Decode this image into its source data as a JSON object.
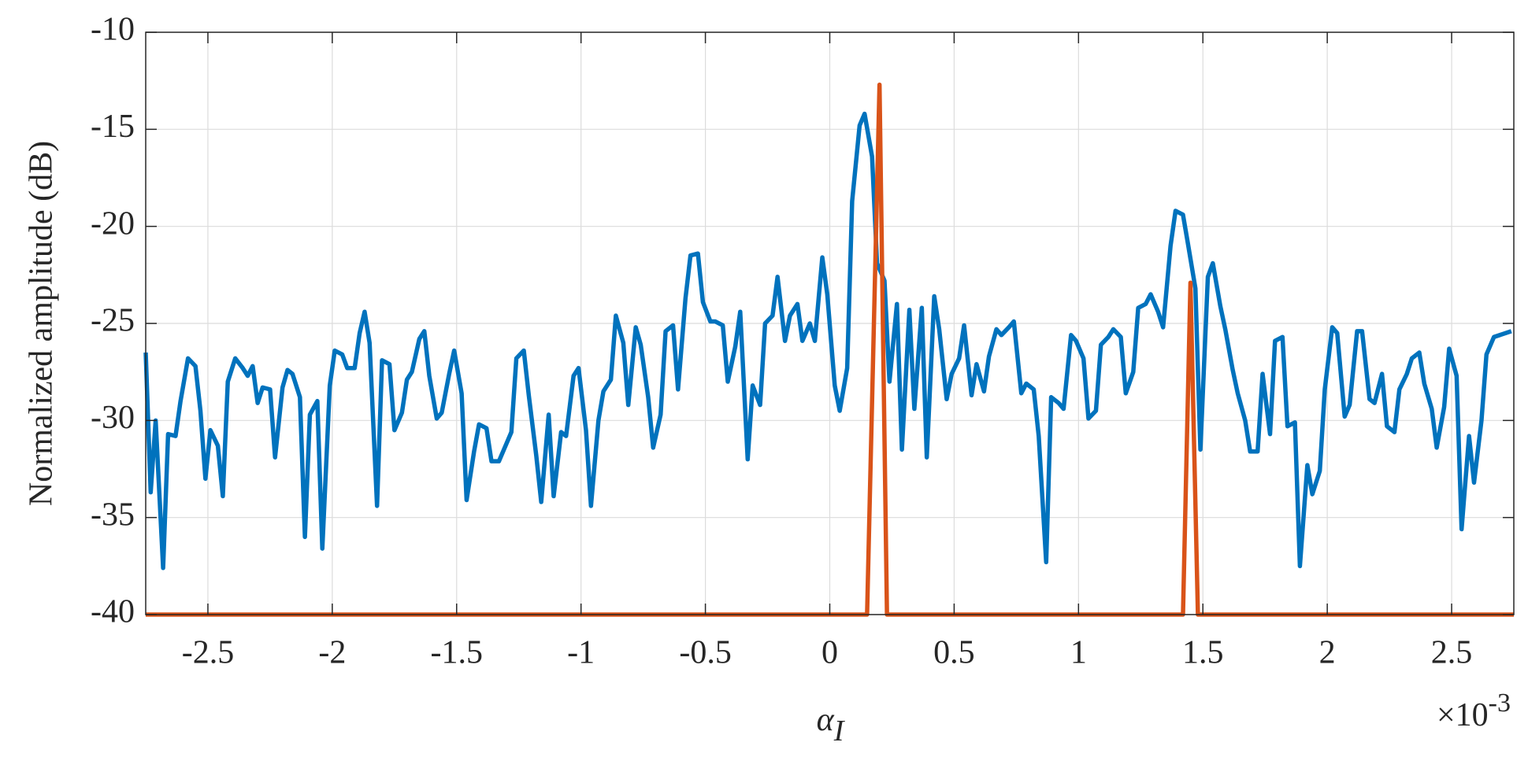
{
  "chart_data": {
    "type": "line",
    "ylabel": "Normalized amplitude (dB)",
    "xlabel": "α",
    "xlabel_subscript": "I",
    "x_scale_label": "×10",
    "x_scale_exponent": "-3",
    "xlim": [
      -2.75,
      2.75
    ],
    "ylim": [
      -40,
      -10
    ],
    "xticks": [
      -2.5,
      -2,
      -1.5,
      -1,
      -0.5,
      0,
      0.5,
      1,
      1.5,
      2,
      2.5
    ],
    "yticks": [
      -40,
      -35,
      -30,
      -25,
      -20,
      -15,
      -10
    ],
    "grid": true,
    "series": [
      {
        "color": "#0072BD",
        "x": [
          -2.75,
          -2.73,
          -2.71,
          -2.68,
          -2.66,
          -2.63,
          -2.61,
          -2.58,
          -2.55,
          -2.53,
          -2.51,
          -2.49,
          -2.46,
          -2.44,
          -2.42,
          -2.39,
          -2.36,
          -2.34,
          -2.32,
          -2.3,
          -2.28,
          -2.25,
          -2.23,
          -2.2,
          -2.18,
          -2.16,
          -2.13,
          -2.11,
          -2.09,
          -2.06,
          -2.04,
          -2.01,
          -1.99,
          -1.96,
          -1.94,
          -1.91,
          -1.89,
          -1.87,
          -1.85,
          -1.82,
          -1.8,
          -1.77,
          -1.75,
          -1.72,
          -1.7,
          -1.68,
          -1.65,
          -1.63,
          -1.61,
          -1.58,
          -1.56,
          -1.53,
          -1.51,
          -1.48,
          -1.46,
          -1.43,
          -1.41,
          -1.38,
          -1.36,
          -1.33,
          -1.31,
          -1.28,
          -1.26,
          -1.23,
          -1.21,
          -1.18,
          -1.16,
          -1.13,
          -1.11,
          -1.08,
          -1.06,
          -1.03,
          -1.01,
          -0.98,
          -0.96,
          -0.93,
          -0.91,
          -0.88,
          -0.86,
          -0.83,
          -0.81,
          -0.78,
          -0.76,
          -0.73,
          -0.71,
          -0.68,
          -0.66,
          -0.63,
          -0.61,
          -0.58,
          -0.56,
          -0.53,
          -0.51,
          -0.48,
          -0.46,
          -0.43,
          -0.41,
          -0.38,
          -0.36,
          -0.33,
          -0.31,
          -0.28,
          -0.26,
          -0.23,
          -0.21,
          -0.18,
          -0.16,
          -0.13,
          -0.11,
          -0.08,
          -0.06,
          -0.03,
          -0.01,
          0.02,
          0.04,
          0.07,
          0.09,
          0.12,
          0.14,
          0.17,
          0.19,
          0.22,
          0.24,
          0.27,
          0.29,
          0.32,
          0.34,
          0.37,
          0.39,
          0.42,
          0.44,
          0.47,
          0.49,
          0.52,
          0.54,
          0.57,
          0.59,
          0.62,
          0.64,
          0.67,
          0.69,
          0.72,
          0.74,
          0.77,
          0.79,
          0.82,
          0.84,
          0.87,
          0.89,
          0.92,
          0.94,
          0.97,
          0.99,
          1.02,
          1.04,
          1.07,
          1.09,
          1.12,
          1.14,
          1.17,
          1.19,
          1.22,
          1.24,
          1.27,
          1.29,
          1.32,
          1.34,
          1.37,
          1.39,
          1.42,
          1.44,
          1.47,
          1.49,
          1.52,
          1.54,
          1.57,
          1.59,
          1.62,
          1.64,
          1.67,
          1.69,
          1.72,
          1.74,
          1.77,
          1.79,
          1.82,
          1.84,
          1.87,
          1.89,
          1.92,
          1.94,
          1.97,
          1.99,
          2.02,
          2.04,
          2.07,
          2.09,
          2.12,
          2.14,
          2.17,
          2.19,
          2.22,
          2.24,
          2.27,
          2.29,
          2.32,
          2.34,
          2.37,
          2.39,
          2.42,
          2.44,
          2.47,
          2.49,
          2.52,
          2.54,
          2.57,
          2.59,
          2.62,
          2.64,
          2.67,
          2.74
        ],
        "values": [
          -26.5,
          -33.7,
          -30,
          -37.6,
          -30.7,
          -30.8,
          -29,
          -26.8,
          -27.2,
          -29.5,
          -33,
          -30.5,
          -31.3,
          -33.9,
          -28,
          -26.8,
          -27.3,
          -27.7,
          -27.2,
          -29.1,
          -28.3,
          -28.4,
          -31.9,
          -28.3,
          -27.4,
          -27.6,
          -28.8,
          -36,
          -29.7,
          -29,
          -36.6,
          -28.2,
          -26.4,
          -26.6,
          -27.3,
          -27.3,
          -25.5,
          -24.4,
          -26,
          -34.4,
          -26.9,
          -27.1,
          -30.5,
          -29.6,
          -27.9,
          -27.5,
          -25.8,
          -25.4,
          -27.7,
          -29.9,
          -29.6,
          -27.6,
          -26.4,
          -28.6,
          -34.1,
          -31.6,
          -30.2,
          -30.4,
          -32.1,
          -32.1,
          -31.5,
          -30.6,
          -26.8,
          -26.4,
          -28.7,
          -31.8,
          -34.2,
          -29.7,
          -33.9,
          -30.6,
          -30.8,
          -27.7,
          -27.3,
          -30.5,
          -34.4,
          -30,
          -28.5,
          -27.9,
          -24.6,
          -26,
          -29.2,
          -25.2,
          -26.1,
          -28.8,
          -31.4,
          -29.7,
          -25.4,
          -25.1,
          -28.4,
          -23.7,
          -21.5,
          -21.4,
          -23.9,
          -24.9,
          -24.9,
          -25.1,
          -28,
          -26.2,
          -24.4,
          -32,
          -28.2,
          -29.2,
          -25,
          -24.6,
          -22.6,
          -25.9,
          -24.6,
          -24,
          -25.9,
          -25,
          -25.9,
          -21.6,
          -23.5,
          -28.2,
          -29.5,
          -27.3,
          -18.7,
          -14.8,
          -14.2,
          -16.4,
          -21.9,
          -22.8,
          -28,
          -24,
          -31.5,
          -24.3,
          -29.4,
          -24.2,
          -31.9,
          -23.6,
          -25.3,
          -28.9,
          -27.6,
          -26.8,
          -25.1,
          -28.7,
          -27.1,
          -28.5,
          -26.7,
          -25.3,
          -25.6,
          -25.2,
          -24.9,
          -28.6,
          -28.1,
          -28.4,
          -30.8,
          -37.3,
          -28.8,
          -29.1,
          -29.4,
          -25.6,
          -25.9,
          -26.8,
          -29.9,
          -29.5,
          -26.1,
          -25.7,
          -25.3,
          -25.7,
          -28.6,
          -27.5,
          -24.2,
          -24,
          -23.5,
          -24.4,
          -25.2,
          -21,
          -19.2,
          -19.4,
          -20.9,
          -23.2,
          -31.5,
          -22.6,
          -21.9,
          -24.1,
          -25.3,
          -27.4,
          -28.6,
          -30,
          -31.6,
          -31.6,
          -27.6,
          -30.7,
          -25.9,
          -25.7,
          -30.3,
          -30.1,
          -37.5,
          -32.3,
          -33.8,
          -32.6,
          -28.4,
          -25.2,
          -25.5,
          -29.8,
          -29.2,
          -25.4,
          -25.4,
          -28.9,
          -29.1,
          -27.6,
          -30.3,
          -30.6,
          -28.4,
          -27.6,
          -26.8,
          -26.5,
          -28.1,
          -29.4,
          -31.4,
          -29.3,
          -26.3,
          -27.7,
          -35.6,
          -30.8,
          -33.2,
          -30,
          -26.6,
          -25.7,
          -25.4
        ]
      },
      {
        "color": "#D95319",
        "x": [
          -2.75,
          0.15,
          0.2,
          0.23,
          1.42,
          1.45,
          1.48,
          2.75
        ],
        "values": [
          -40,
          -40,
          -12.7,
          -40,
          -40,
          -22.9,
          -40,
          -40
        ]
      }
    ]
  }
}
